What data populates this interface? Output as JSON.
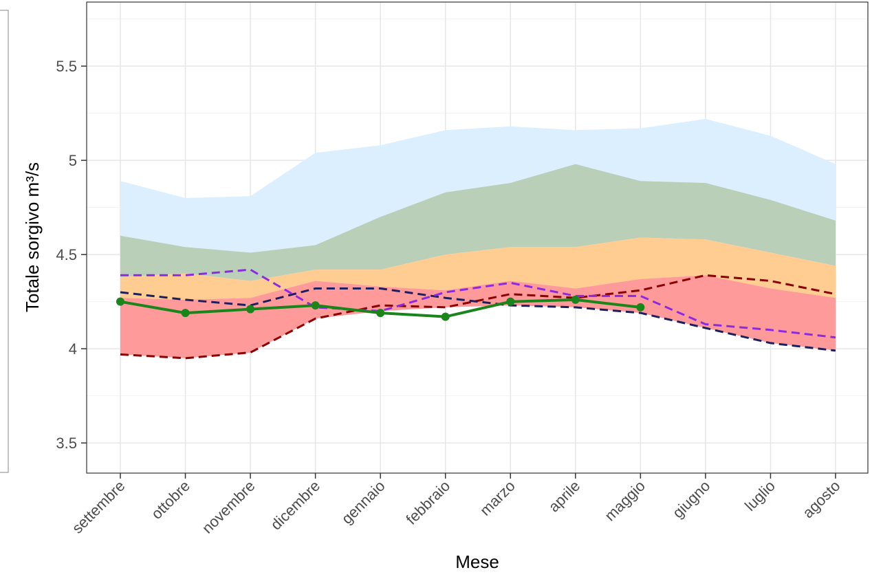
{
  "chart_data": {
    "type": "line",
    "x_label": "Mese",
    "y_label": "Totale sorgivo m³/s",
    "categories": [
      "settembre",
      "ottobre",
      "novembre",
      "dicembre",
      "gennaio",
      "febbraio",
      "marzo",
      "aprile",
      "maggio",
      "giugno",
      "luglio",
      "agosto"
    ],
    "ylim": [
      3.34,
      5.84
    ],
    "yticks": [
      3.5,
      4.0,
      4.5,
      5.0,
      5.5
    ],
    "yminorticks": [
      3.75,
      4.25,
      4.75,
      5.25,
      5.75
    ],
    "grid": true,
    "bands": [
      {
        "color": "#dcefff",
        "lower": [
          4.6,
          4.54,
          4.51,
          4.55,
          4.7,
          4.83,
          4.88,
          4.98,
          4.89,
          4.88,
          4.79,
          4.68
        ],
        "upper": [
          4.89,
          4.8,
          4.81,
          5.04,
          5.08,
          5.16,
          5.18,
          5.16,
          5.17,
          5.22,
          5.13,
          4.98
        ]
      },
      {
        "color": "#b9cfb8",
        "lower": [
          4.38,
          4.4,
          4.36,
          4.42,
          4.42,
          4.5,
          4.54,
          4.54,
          4.59,
          4.58,
          4.51,
          4.44
        ],
        "upper": [
          4.6,
          4.54,
          4.51,
          4.55,
          4.7,
          4.83,
          4.88,
          4.98,
          4.89,
          4.88,
          4.79,
          4.68
        ]
      },
      {
        "color": "#ffcc91",
        "lower": [
          4.27,
          4.26,
          4.27,
          4.36,
          4.33,
          4.31,
          4.36,
          4.32,
          4.37,
          4.39,
          4.32,
          4.27
        ],
        "upper": [
          4.38,
          4.4,
          4.36,
          4.42,
          4.42,
          4.5,
          4.54,
          4.54,
          4.59,
          4.58,
          4.51,
          4.44
        ]
      },
      {
        "color": "#ff9a9a",
        "lower": [
          3.97,
          3.95,
          3.98,
          4.16,
          4.2,
          4.22,
          4.23,
          4.22,
          4.19,
          4.11,
          4.03,
          3.99
        ],
        "upper": [
          4.27,
          4.26,
          4.27,
          4.36,
          4.33,
          4.31,
          4.36,
          4.32,
          4.37,
          4.39,
          4.32,
          4.27
        ]
      }
    ],
    "series": [
      {
        "color": "#8b0000",
        "style": "dashed",
        "values": [
          3.97,
          3.95,
          3.98,
          4.16,
          4.23,
          4.22,
          4.29,
          4.27,
          4.31,
          4.39,
          4.36,
          4.29
        ]
      },
      {
        "color": "#1c1f5e",
        "style": "dashed",
        "values": [
          4.3,
          4.26,
          4.23,
          4.32,
          4.32,
          4.27,
          4.23,
          4.22,
          4.19,
          4.11,
          4.03,
          3.99
        ]
      },
      {
        "color": "#8a2be2",
        "style": "dashed",
        "values": [
          4.39,
          4.39,
          4.42,
          4.22,
          4.2,
          4.3,
          4.35,
          4.28,
          4.28,
          4.13,
          4.1,
          4.06
        ]
      },
      {
        "color": "#1a851a",
        "style": "solid",
        "markers": true,
        "values": [
          4.25,
          4.19,
          4.21,
          4.23,
          4.19,
          4.17,
          4.25,
          4.26,
          4.22,
          null,
          null,
          null
        ]
      }
    ]
  }
}
